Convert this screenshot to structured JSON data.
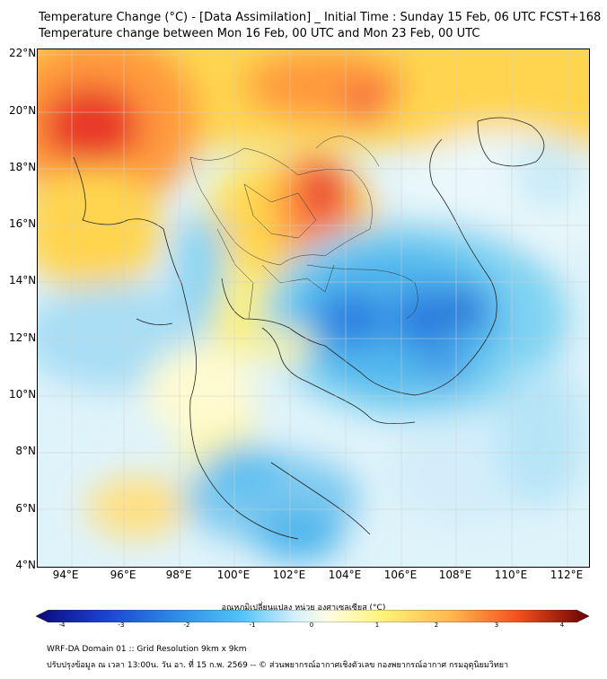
{
  "title_line1": "Temperature Change (°C) - [Data Assimilation] _ Initial Time : Sunday 15 Feb, 06 UTC FCST+168",
  "title_line2": "Temperature change between Mon 16 Feb, 00 UTC and Mon 23 Feb, 00 UTC",
  "lat_labels": [
    "22°N",
    "20°N",
    "18°N",
    "16°N",
    "14°N",
    "12°N",
    "10°N",
    "8°N",
    "6°N",
    "4°N"
  ],
  "lon_labels": [
    "94°E",
    "96°E",
    "98°E",
    "100°E",
    "102°E",
    "104°E",
    "106°E",
    "108°E",
    "110°E",
    "112°E"
  ],
  "colorbar": {
    "label": "อุณหภูมิเปลี่ยนแปลง หน่วย องศาเซลเซียส (°C)",
    "ticks": [
      "-4",
      "-3",
      "-2",
      "-1",
      "0",
      "1",
      "2",
      "3",
      "4"
    ]
  },
  "footer_line1": "WRF-DA Domain 01 :: Grid Resolution 9km x 9km",
  "footer_line2": "ปรับปรุงข้อมูล ณ เวลา 13:00น. วัน อา. ที่ 15 ก.พ. 2569 -- © ส่วนพยากรณ์อากาศเชิงตัวเลข กองพยากรณ์อากาศ กรมอุตุนิยมวิทยา",
  "colors": {
    "warm_dark": "#d7191c",
    "warm": "#fc8d59",
    "warm_light": "#fee08b",
    "neutral": "#ffffe0",
    "cool_light": "#c6ecf7",
    "cool": "#4fc3f7",
    "cool_dark": "#1e6fd9"
  }
}
